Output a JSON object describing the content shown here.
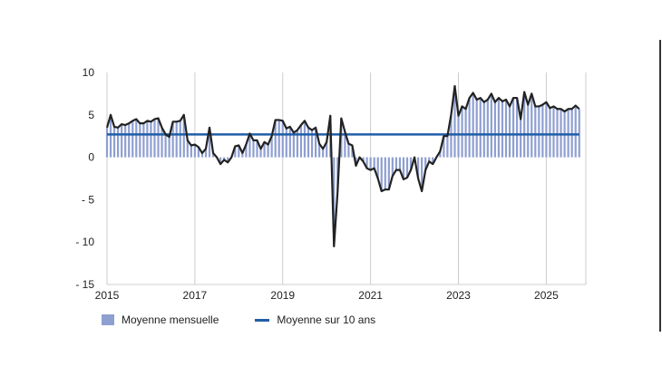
{
  "chart_data": {
    "type": "bar+line",
    "title": "",
    "xlabel": "",
    "ylabel": "",
    "ylim": [
      -15,
      10
    ],
    "yticks": [
      10,
      5,
      0,
      -5,
      -10,
      -15
    ],
    "ytick_labels": [
      "10",
      "5",
      "0",
      "- 5",
      "- 10",
      "- 15"
    ],
    "xlim": [
      2015.0,
      2025.9
    ],
    "xticks": [
      2015,
      2017,
      2019,
      2021,
      2023,
      2025
    ],
    "xtick_labels": [
      "2015",
      "2017",
      "2019",
      "2021",
      "2023",
      "2025"
    ],
    "grid": "vertical-at-x-ticks",
    "start_year": 2015,
    "start_month": 1,
    "monthly_series": {
      "name": "Moyenne mensuelle",
      "values": [
        3.5,
        5.0,
        3.6,
        3.5,
        3.9,
        3.8,
        4.0,
        4.3,
        4.5,
        4.0,
        4.0,
        4.3,
        4.2,
        4.5,
        4.6,
        3.5,
        2.7,
        2.4,
        4.2,
        4.2,
        4.3,
        5.0,
        2.0,
        1.4,
        1.5,
        1.2,
        0.5,
        1.0,
        3.5,
        0.5,
        0.0,
        -0.8,
        -0.3,
        -0.6,
        0.0,
        1.3,
        1.4,
        0.5,
        1.5,
        2.8,
        2.0,
        2.0,
        1.0,
        1.8,
        1.5,
        2.5,
        4.4,
        4.4,
        4.3,
        3.4,
        3.6,
        2.9,
        3.2,
        3.8,
        4.3,
        3.5,
        3.2,
        3.5,
        1.6,
        1.0,
        1.8,
        4.9,
        -10.5,
        -4.0,
        4.6,
        3.0,
        1.6,
        1.4,
        -1.0,
        0.0,
        -0.5,
        -1.3,
        -1.5,
        -1.3,
        -2.5,
        -4.0,
        -3.8,
        -3.8,
        -2.2,
        -1.5,
        -1.5,
        -2.6,
        -2.4,
        -1.5,
        0.0,
        -2.5,
        -4.0,
        -1.5,
        -0.5,
        -0.8,
        0.0,
        0.7,
        2.5,
        2.5,
        5.0,
        8.4,
        4.9,
        6.0,
        5.7,
        7.0,
        7.6,
        6.8,
        7.0,
        6.5,
        6.8,
        7.5,
        6.5,
        7.0,
        6.6,
        6.8,
        6.0,
        7.0,
        7.0,
        4.5,
        7.7,
        6.2,
        7.5,
        6.0,
        6.0,
        6.2,
        6.5,
        5.8,
        6.0,
        5.7,
        5.7,
        5.4,
        5.7,
        5.7,
        6.1,
        5.7
      ]
    },
    "average_line": {
      "name": "Moyenne sur 10 ans",
      "value": 2.7
    },
    "colors": {
      "bar": "#8e9fd1",
      "monthly_line": "#222222",
      "average_line": "#1f5ea8",
      "grid": "#cccccc"
    }
  },
  "legend": {
    "bar_label": "Moyenne mensuelle",
    "line_label": "Moyenne sur 10 ans"
  }
}
